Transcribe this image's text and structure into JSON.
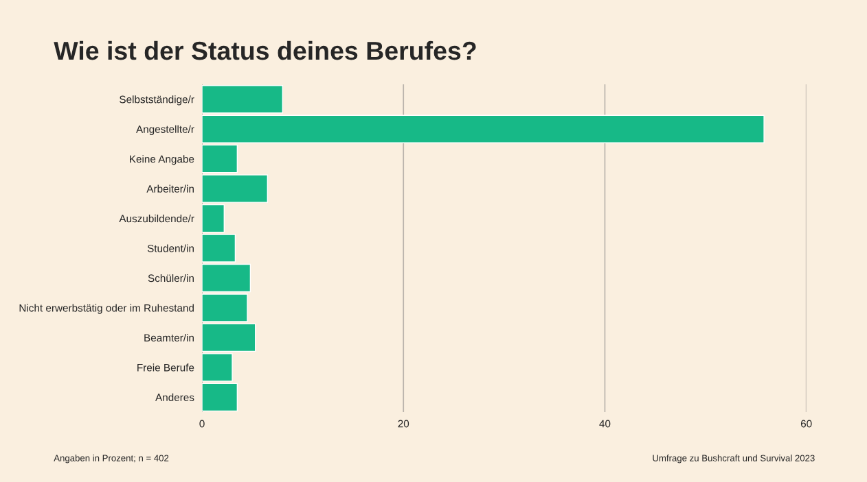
{
  "chart_data": {
    "type": "bar",
    "orientation": "horizontal",
    "title": "Wie ist der Status deines Berufes?",
    "categories": [
      "Selbstständige/r",
      "Angestellte/r",
      "Keine Angabe",
      "Arbeiter/in",
      "Auszubildende/r",
      "Student/in",
      "Schüler/in",
      "Nicht erwerbstätig oder im Ruhestand",
      "Beamter/in",
      "Freie Berufe",
      "Anderes"
    ],
    "values": [
      8.0,
      55.8,
      3.5,
      6.5,
      2.2,
      3.3,
      4.8,
      4.5,
      5.3,
      3.0,
      3.5
    ],
    "color": "#17b987",
    "xlim": [
      0,
      60
    ],
    "xticks": [
      0,
      20,
      40,
      60
    ],
    "grid": "x",
    "annotations": [
      "Angaben in Prozent; n = 402",
      "Umfrage zu Bushcraft und Survival 2023"
    ]
  }
}
